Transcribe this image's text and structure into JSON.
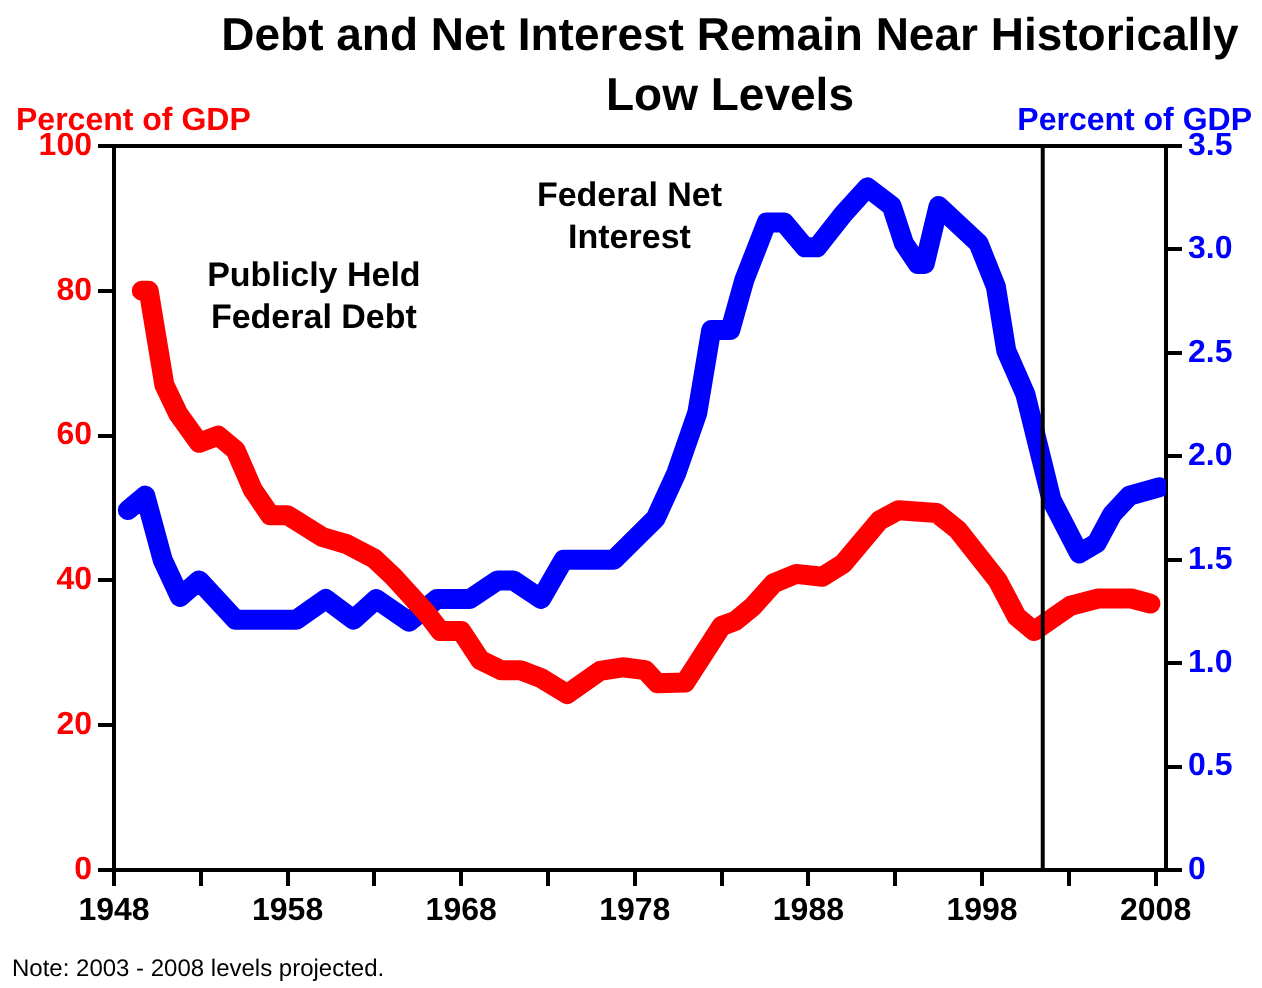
{
  "chart_data": {
    "type": "line",
    "title": "Debt and Net Interest Remain Near Historically Low Levels",
    "ylabel": "Percent of GDP",
    "y2label": "Percent of GDP",
    "annotations": [
      "Note: 2003 - 2008 levels projected."
    ],
    "xlim": [
      1948,
      2008.6
    ],
    "xticks": [
      1948,
      {
        "value": 1953,
        "label": null
      },
      1958,
      {
        "value": 1963,
        "label": null
      },
      1968,
      {
        "value": 1973,
        "label": null
      },
      1978,
      {
        "value": 1983,
        "label": null
      },
      1988,
      {
        "value": 1993,
        "label": null
      },
      1998,
      {
        "value": 2003,
        "label": null
      },
      2008
    ],
    "ylim": [
      0,
      100
    ],
    "yticks": [
      0,
      20,
      40,
      60,
      80,
      100
    ],
    "y2lim": [
      0,
      3.5
    ],
    "y2ticks": [
      0,
      {
        "value": 0.5,
        "label": "0.5"
      },
      {
        "value": 1,
        "label": "1.0"
      },
      {
        "value": 1.5,
        "label": "1.5"
      },
      {
        "value": 2,
        "label": "2.0"
      },
      {
        "value": 2.5,
        "label": "2.5"
      },
      {
        "value": 3,
        "label": "3.0"
      },
      {
        "value": 3.5,
        "label": "3.5"
      }
    ],
    "ref_lines": [
      {
        "axis": "x",
        "value": 2001.5,
        "color": "#000000"
      }
    ],
    "legend": false,
    "series": [
      {
        "name": "Publicly Held Federal Debt",
        "color": "#ff0000",
        "x": [
          1949.6,
          1950,
          1950.9,
          1951.7,
          1952.9,
          1954,
          1955,
          1956,
          1957,
          1958,
          1960,
          1961.4,
          1963,
          1964.1,
          1966,
          1966.8,
          1968,
          1969.1,
          1970.3,
          1971.4,
          1972.6,
          1974.1,
          1976,
          1977.3,
          1978.6,
          1979.3,
          1980.9,
          1983,
          1983.8,
          1984.8,
          1986,
          1987.3,
          1988.8,
          1990,
          1992.1,
          1993.2,
          1995.4,
          1996.6,
          1998.9,
          2000,
          2001,
          2003.1,
          2004.7,
          2006.6,
          2007.7
        ],
        "values": [
          80,
          80,
          67,
          63,
          59,
          60,
          58,
          52.5,
          49,
          49,
          46,
          45,
          43,
          40.5,
          35.5,
          33,
          33,
          29,
          27.6,
          27.6,
          26.5,
          24.3,
          27.5,
          28,
          27.6,
          25.8,
          25.9,
          33.7,
          34.4,
          36.4,
          39.6,
          40.9,
          40.5,
          42.3,
          48.3,
          49.7,
          49.3,
          47,
          40,
          35,
          33,
          36.5,
          37.5,
          37.5,
          36.8
        ]
      },
      {
        "name": "Federal Net Interest",
        "color": "#0000ff",
        "axis": "y2",
        "x": [
          1948.8,
          1949.8,
          1950.8,
          1951.8,
          1952.9,
          1955,
          1958.5,
          1960.2,
          1961.8,
          1963.1,
          1965,
          1966.6,
          1968.5,
          1970.1,
          1971,
          1972.6,
          1973.9,
          1976.8,
          1979.2,
          1980.4,
          1981.6,
          1982.4,
          1983.5,
          1984.3,
          1985.6,
          1986.6,
          1987.8,
          1988.5,
          1990,
          1991.4,
          1992.8,
          1993.5,
          1994.3,
          1994.7,
          1995.5,
          1997.8,
          1998.8,
          1999.4,
          2000.5,
          2002,
          2003.6,
          2004.6,
          2005.5,
          2006.5,
          2008.2
        ],
        "values": [
          1.74,
          1.81,
          1.5,
          1.32,
          1.4,
          1.21,
          1.21,
          1.31,
          1.21,
          1.31,
          1.2,
          1.31,
          1.31,
          1.4,
          1.4,
          1.31,
          1.5,
          1.5,
          1.7,
          1.92,
          2.21,
          2.61,
          2.61,
          2.85,
          3.13,
          3.13,
          3.01,
          3.01,
          3.17,
          3.3,
          3.21,
          3.03,
          2.93,
          2.93,
          3.21,
          3.03,
          2.82,
          2.51,
          2.3,
          1.79,
          1.53,
          1.58,
          1.72,
          1.81,
          1.85
        ]
      }
    ]
  }
}
